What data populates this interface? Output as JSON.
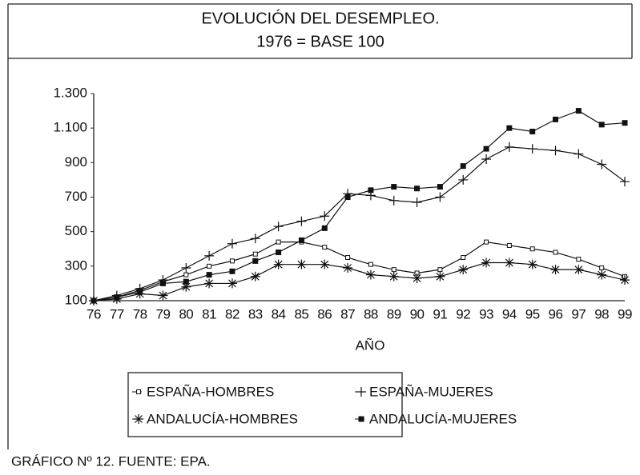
{
  "chart_data": {
    "type": "line",
    "title": "EVOLUCIÓN DEL DESEMPLEO.",
    "subtitle": "1976 = BASE 100",
    "xlabel": "AÑO",
    "caption": "GRÁFICO Nº 12. FUENTE: EPA.",
    "categories": [
      "76",
      "77",
      "78",
      "79",
      "80",
      "81",
      "82",
      "83",
      "84",
      "85",
      "86",
      "87",
      "88",
      "89",
      "90",
      "91",
      "92",
      "93",
      "94",
      "95",
      "96",
      "97",
      "98",
      "99"
    ],
    "ylim": [
      100,
      1300
    ],
    "yticks": [
      100,
      300,
      500,
      700,
      900,
      {
        "value": 1100,
        "label": "1.100"
      },
      {
        "value": 1300,
        "label": "1.300"
      }
    ],
    "grid": false,
    "legend": "bottom",
    "series": [
      {
        "name": "ESPAÑA-HOMBRES",
        "color": "#111111",
        "marker": "open-square",
        "values": [
          100,
          120,
          160,
          210,
          250,
          300,
          330,
          370,
          440,
          440,
          410,
          350,
          310,
          280,
          260,
          280,
          350,
          440,
          420,
          400,
          380,
          340,
          290,
          240
        ]
      },
      {
        "name": "ESPAÑA-MUJERES",
        "color": "#111111",
        "marker": "plus",
        "values": [
          100,
          130,
          170,
          220,
          290,
          360,
          430,
          460,
          530,
          560,
          590,
          720,
          710,
          680,
          670,
          700,
          800,
          920,
          990,
          980,
          970,
          950,
          890,
          790
        ]
      },
      {
        "name": "ANDALUCÍA-HOMBRES",
        "color": "#111111",
        "marker": "asterisk",
        "values": [
          100,
          110,
          140,
          130,
          180,
          200,
          200,
          240,
          310,
          310,
          310,
          290,
          250,
          240,
          230,
          240,
          280,
          320,
          320,
          310,
          280,
          280,
          250,
          220
        ]
      },
      {
        "name": "ANDALUCÍA-MUJERES",
        "color": "#111111",
        "marker": "filled-square",
        "values": [
          100,
          120,
          150,
          200,
          210,
          250,
          270,
          330,
          380,
          450,
          520,
          700,
          740,
          760,
          750,
          760,
          880,
          980,
          1100,
          1080,
          1150,
          1200,
          1120,
          1130
        ]
      }
    ]
  }
}
